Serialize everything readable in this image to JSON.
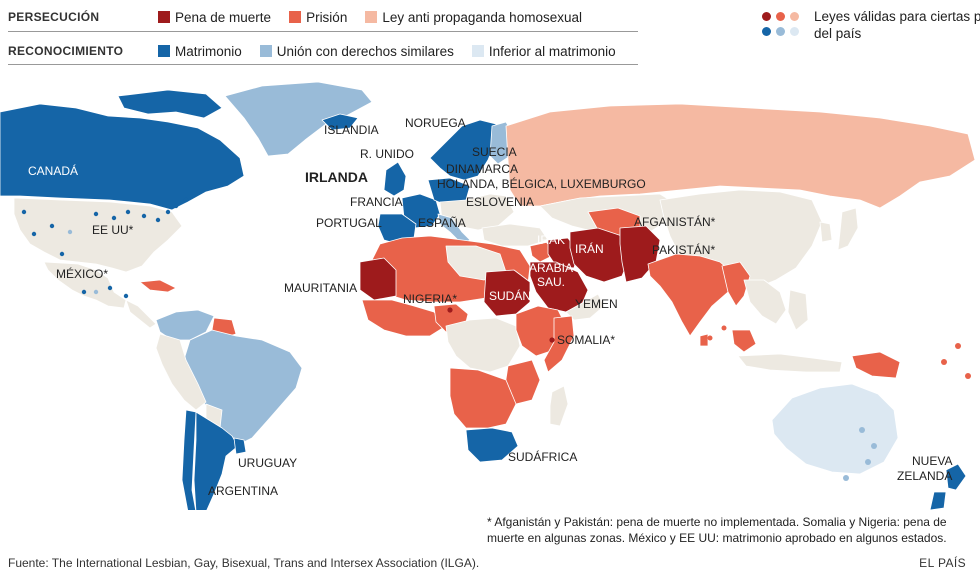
{
  "colors": {
    "pena_de_muerte": "#9e1b1c",
    "prision": "#e8624a",
    "ley_anti_propaganda": "#f5b9a2",
    "matrimonio": "#1565a7",
    "union": "#99bbd8",
    "inferior": "#dce8f2",
    "sin_datos": "#ede9e1",
    "ocean": "#ffffff"
  },
  "legend": {
    "persecucion": {
      "title": "PERSECUCIÓN",
      "items": [
        {
          "label": "Pena de muerte",
          "color": "#9e1b1c"
        },
        {
          "label": "Prisión",
          "color": "#e8624a"
        },
        {
          "label": "Ley anti propaganda homosexual",
          "color": "#f5b9a2"
        }
      ]
    },
    "reconocimiento": {
      "title": "RECONOCIMIENTO",
      "items": [
        {
          "label": "Matrimonio",
          "color": "#1565a7"
        },
        {
          "label": "Unión con derechos similares",
          "color": "#99bbd8"
        },
        {
          "label": "Inferior al matrimonio",
          "color": "#dce8f2"
        }
      ]
    },
    "partial_laws": {
      "text": "Leyes válidas para ciertas partes del país",
      "dot_colors": [
        "#9e1b1c",
        "#e8624a",
        "#f5b9a2",
        "#1565a7",
        "#99bbd8",
        "#dce8f2"
      ]
    }
  },
  "labels": {
    "canada": "CANADÁ",
    "eeuu": "EE UU*",
    "mexico": "MÉXICO*",
    "islandia": "ISLANDIA",
    "noruega": "NORUEGA",
    "suecia": "SUECIA",
    "reino_unido": "R. UNIDO",
    "dinamarca": "DINAMARCA",
    "irlanda": "IRLANDA",
    "holanda": "HOLANDA, BÉLGICA, LUXEMBURGO",
    "francia": "FRANCIA",
    "eslovenia": "ESLOVENIA",
    "portugal": "PORTUGAL",
    "espana": "ESPAÑA",
    "irak": "IRAK",
    "iran": "IRÁN",
    "afganistan": "AFGANISTÁN*",
    "pakistan": "PAKISTÁN*",
    "arabia": "ARABIA",
    "arabia2": "SAU.",
    "mauritania": "MAURITANIA",
    "nigeria": "NIGERIA*",
    "sudan": "SUDÁN",
    "yemen": "YEMEN",
    "somalia": "SOMALIA*",
    "sudafrica": "SUDÁFRICA",
    "uruguay": "URUGUAY",
    "argentina": "ARGENTINA",
    "nueva": "NUEVA",
    "zelanda": "ZELANDA"
  },
  "footnote": "* Afganistán y Pakistán: pena de muerte no implementada. Somalia y Nigeria: pena de muerte en algunas zonas. México y EE UU: matrimonio aprobado en algunos estados.",
  "source": "Fuente: The International Lesbian, Gay, Bisexual, Trans and Intersex Association (ILGA).",
  "brand": "EL PAÍS"
}
